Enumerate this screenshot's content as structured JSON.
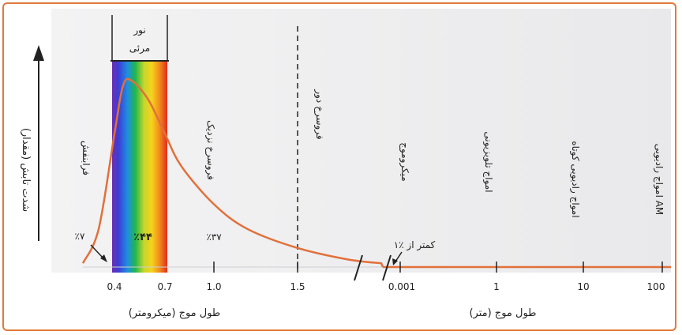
{
  "chart_data": {
    "type": "line",
    "title": "",
    "ylabel": "شدت تابش (مقدار)",
    "xlabel_micrometer": "طول موج (میکرومتر)",
    "xlabel_meter": "طول موج (متر)",
    "visible_band_label_line1": "نور",
    "visible_band_label_line2": "مرئی",
    "ticks_micrometer": [
      "0.4",
      "0.7",
      "1.0",
      "1.5"
    ],
    "ticks_meter": [
      "0.001",
      "1",
      "10",
      "100"
    ],
    "regions": [
      {
        "label": "فرابنفش",
        "percent": "٪۷"
      },
      {
        "label": "",
        "percent": "٪۴۴"
      },
      {
        "label": "فروسرخ نزدیک",
        "percent": "٪۳۷"
      },
      {
        "label": "فروسرخ دور",
        "percent": ""
      },
      {
        "label": "میکروموج",
        "percent": ""
      },
      {
        "label": "امواج تلویزیونی",
        "percent": ""
      },
      {
        "label": "امواج رادیویی کوتاه",
        "percent": ""
      },
      {
        "label": "امواج رادیویی AM",
        "percent": ""
      }
    ],
    "low_share_note": "کمتر از ٪۱",
    "curve_points_micrometer": [
      [
        0.3,
        0.02
      ],
      [
        0.35,
        0.2
      ],
      [
        0.4,
        0.7
      ],
      [
        0.45,
        0.95
      ],
      [
        0.5,
        0.98
      ],
      [
        0.6,
        0.88
      ],
      [
        0.7,
        0.7
      ],
      [
        0.8,
        0.53
      ],
      [
        1.0,
        0.33
      ],
      [
        1.2,
        0.2
      ],
      [
        1.5,
        0.1
      ],
      [
        1.8,
        0.04
      ],
      [
        2.0,
        0.02
      ]
    ],
    "colors": {
      "curve": "#e2703a",
      "frame": "#e07a3a",
      "background": "#ececee"
    }
  }
}
